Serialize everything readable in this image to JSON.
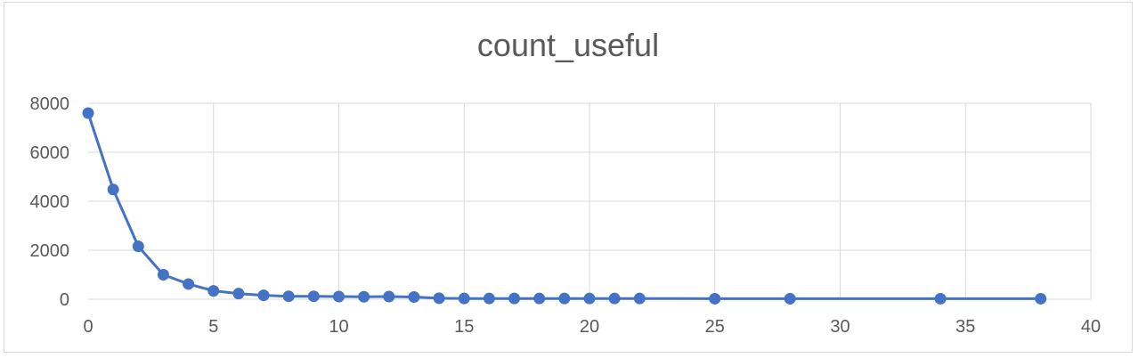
{
  "chart_data": {
    "type": "scatter",
    "title": "count_useful",
    "xlabel": "",
    "ylabel": "",
    "xlim": [
      0,
      40
    ],
    "ylim": [
      0,
      8000
    ],
    "x_ticks": [
      "0",
      "5",
      "10",
      "15",
      "20",
      "25",
      "30",
      "35",
      "40"
    ],
    "y_ticks": [
      "0",
      "2000",
      "4000",
      "6000",
      "8000"
    ],
    "grid": true,
    "legend": "none",
    "line_color": "#4472c4",
    "series": [
      {
        "x": [
          0,
          1,
          2,
          3,
          4,
          5,
          6,
          7,
          8,
          9,
          10,
          11,
          12,
          13,
          14,
          15,
          16,
          17,
          18,
          19,
          20,
          21,
          22,
          25,
          28,
          34,
          38
        ],
        "y": [
          7600,
          4480,
          2160,
          1000,
          620,
          340,
          230,
          160,
          120,
          120,
          110,
          100,
          110,
          90,
          40,
          30,
          30,
          30,
          30,
          30,
          30,
          30,
          30,
          20,
          20,
          20,
          20
        ]
      }
    ]
  }
}
